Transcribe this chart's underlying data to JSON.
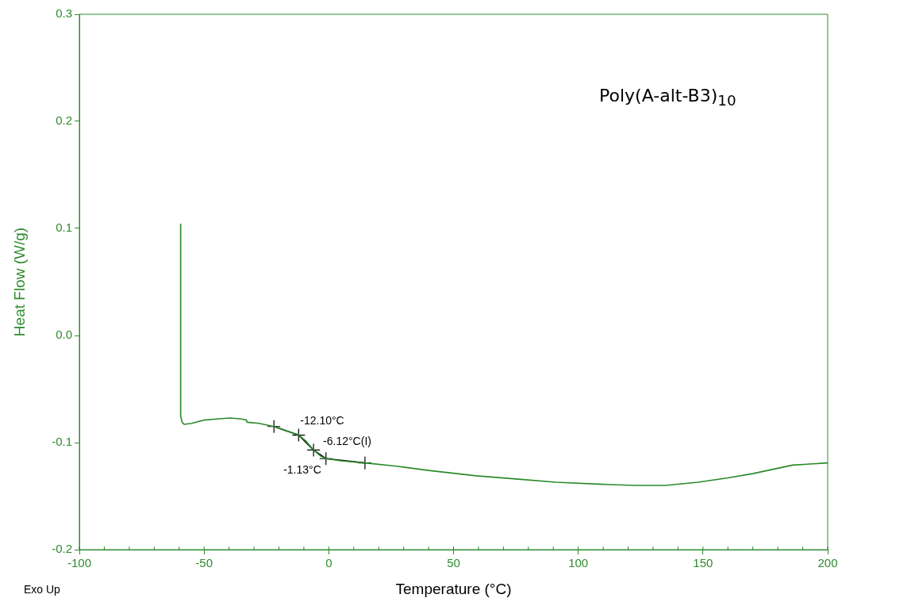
{
  "chart_data": {
    "type": "line",
    "title": "Poly(A-alt-B3)$_{10}$",
    "xlabel": "Temperature (°C)",
    "ylabel": "Heat Flow (W/g)",
    "xlim": [
      -100,
      200
    ],
    "xticks": [
      -100,
      -50,
      {
        "value": 0,
        "label": "0"
      },
      50,
      100,
      150,
      200
    ],
    "ylim": [
      -0.2,
      0.3
    ],
    "yticks": [
      -0.2,
      -0.1,
      {
        "value": 0,
        "label": "0.0"
      },
      0.1,
      0.2,
      0.3
    ],
    "grid": false,
    "legend": false,
    "series": [
      {
        "color": "#2a8a2a",
        "marker": "none",
        "x": [
          -59.4,
          -59.4,
          -58.8,
          -58,
          -55,
          -50,
          -45,
          -39.5,
          -35,
          -33,
          -32.8,
          -28,
          -22,
          -17,
          -12,
          -9,
          -6.12,
          -3,
          -1,
          5,
          14.5,
          27,
          40,
          59,
          75,
          91,
          110,
          123,
          135,
          148,
          160,
          170,
          180,
          186,
          193,
          200
        ],
        "values": [
          0.104,
          -0.075,
          -0.081,
          -0.083,
          -0.082,
          -0.079,
          -0.078,
          -0.077,
          -0.078,
          -0.079,
          -0.081,
          -0.082,
          -0.085,
          -0.089,
          -0.093,
          -0.099,
          -0.107,
          -0.113,
          -0.115,
          -0.117,
          -0.119,
          -0.122,
          -0.126,
          -0.131,
          -0.134,
          -0.137,
          -0.139,
          -0.14,
          -0.14,
          -0.137,
          -0.133,
          -0.129,
          -0.124,
          -0.121,
          -0.12,
          -0.119
        ]
      },
      {
        "color": "#000000",
        "marker": "cross",
        "x": [
          -22,
          -12.1,
          -6.12,
          -1.13,
          14.5
        ],
        "values": [
          -0.085,
          -0.093,
          -0.107,
          -0.115,
          -0.119
        ]
      }
    ],
    "annotations": [
      {
        "text": "-12.10°C",
        "x": -12.1,
        "y": -0.093
      },
      {
        "text": "-6.12°C(I)",
        "x": -6.12,
        "y": -0.107
      },
      {
        "text": "-1.13°C",
        "x": -1.13,
        "y": -0.115
      },
      "Exo Up"
    ]
  }
}
